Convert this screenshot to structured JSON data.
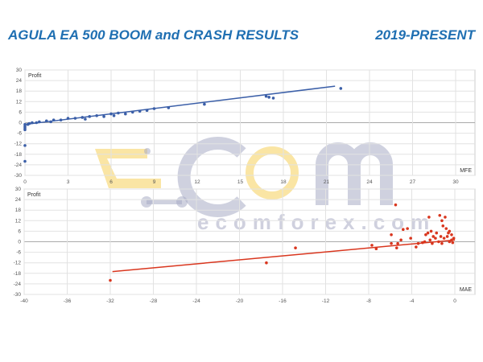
{
  "header": {
    "title": "AGULA EA 500 BOOM and CRASH RESULTS",
    "period": "2019-PRESENT"
  },
  "watermark": {
    "text": "ecomforex.com",
    "colors": {
      "grey": "#a8abc4",
      "yellow": "#f5cf5a"
    }
  },
  "chart_data": [
    {
      "type": "scatter",
      "ylabel": "Profit",
      "xlabel": "MFE",
      "xlim": [
        0,
        30
      ],
      "ylim": [
        -30,
        30
      ],
      "xticks": [
        0,
        3,
        6,
        9,
        12,
        15,
        18,
        21,
        24,
        27,
        30
      ],
      "yticks": [
        30,
        24,
        18,
        12,
        6,
        0,
        -6,
        -12,
        -18,
        -24,
        -30
      ],
      "grid": true,
      "color": "#3b5fa8",
      "trendline": [
        [
          0,
          -1
        ],
        [
          21.6,
          20.8
        ]
      ],
      "points": [
        [
          0,
          -1
        ],
        [
          0,
          -2
        ],
        [
          0,
          -3
        ],
        [
          0,
          -4
        ],
        [
          0,
          -13
        ],
        [
          0,
          -22
        ],
        [
          0.2,
          -1
        ],
        [
          0.3,
          -0.5
        ],
        [
          0.5,
          0
        ],
        [
          0.8,
          0
        ],
        [
          1,
          0.5
        ],
        [
          1.5,
          1
        ],
        [
          1.8,
          0.5
        ],
        [
          2,
          1.5
        ],
        [
          2.5,
          1.5
        ],
        [
          3,
          2.5
        ],
        [
          3.5,
          2.5
        ],
        [
          4,
          3
        ],
        [
          4.2,
          2
        ],
        [
          4.5,
          3.5
        ],
        [
          5,
          4
        ],
        [
          5.5,
          3.5
        ],
        [
          6,
          5
        ],
        [
          6.2,
          4
        ],
        [
          6.5,
          5.5
        ],
        [
          7,
          5
        ],
        [
          7.5,
          6
        ],
        [
          8,
          6.5
        ],
        [
          8.5,
          7
        ],
        [
          9,
          8
        ],
        [
          10,
          8.5
        ],
        [
          12.5,
          10.5
        ],
        [
          16.8,
          15
        ],
        [
          17,
          14.5
        ],
        [
          17.3,
          14
        ],
        [
          22,
          19.5
        ]
      ]
    },
    {
      "type": "scatter",
      "ylabel": "Profit",
      "xlabel": "MAE",
      "xlim": [
        -40,
        0
      ],
      "ylim": [
        -30,
        30
      ],
      "xticks": [
        -40,
        -36,
        -32,
        -28,
        -24,
        -20,
        -16,
        -12,
        -8,
        -4,
        0
      ],
      "yticks": [
        30,
        24,
        18,
        12,
        6,
        0,
        -6,
        -12,
        -18,
        -24,
        -30
      ],
      "grid": true,
      "color": "#d9361e",
      "trendline": [
        [
          -31.8,
          -17
        ],
        [
          0,
          1
        ]
      ],
      "points": [
        [
          -32,
          -22
        ],
        [
          -17.5,
          -12
        ],
        [
          -14.8,
          -3.5
        ],
        [
          -7.7,
          -2
        ],
        [
          -7.3,
          -4
        ],
        [
          -5.5,
          21
        ],
        [
          -5.9,
          4
        ],
        [
          -5.9,
          -1
        ],
        [
          -5.3,
          -1
        ],
        [
          -5.4,
          -3.5
        ],
        [
          -5,
          1
        ],
        [
          -4.8,
          7
        ],
        [
          -4.4,
          7.5
        ],
        [
          -4.1,
          2
        ],
        [
          -3.6,
          -3
        ],
        [
          -3.4,
          -1
        ],
        [
          -3,
          -0.5
        ],
        [
          -2.8,
          0
        ],
        [
          -2.7,
          4
        ],
        [
          -2.5,
          5
        ],
        [
          -2.3,
          1
        ],
        [
          -2.1,
          -1
        ],
        [
          -2,
          3
        ],
        [
          -1.8,
          2
        ],
        [
          -2.4,
          14
        ],
        [
          -1.4,
          15
        ],
        [
          -1.2,
          12
        ],
        [
          -0.9,
          14
        ],
        [
          -1.1,
          9
        ],
        [
          -0.8,
          7.5
        ],
        [
          -0.5,
          6
        ],
        [
          -0.3,
          4
        ],
        [
          -1.5,
          0
        ],
        [
          -1.2,
          -1
        ],
        [
          -1,
          2
        ],
        [
          -0.7,
          3
        ],
        [
          -0.5,
          0
        ],
        [
          -0.3,
          1
        ],
        [
          -0.1,
          2
        ],
        [
          -0.2,
          -0.5
        ],
        [
          -1.7,
          5
        ],
        [
          -2.2,
          6
        ],
        [
          -0.6,
          5
        ],
        [
          -1.3,
          3
        ]
      ]
    }
  ]
}
